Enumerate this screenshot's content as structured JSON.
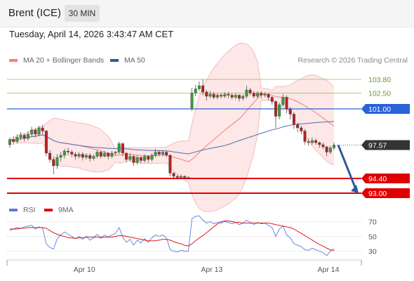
{
  "header": {
    "instrument": "Brent (ICE)",
    "timeframe": "30 MIN"
  },
  "datetime": "Tuesday, April 14, 2026 3:43:47 AM CET",
  "legend": {
    "ma20": {
      "label": "MA 20 + Bollinger Bands",
      "color": "#f08080"
    },
    "ma50": {
      "label": "MA 50",
      "color": "#2e5a9e"
    },
    "rsi": {
      "label": "RSI",
      "color": "#5b7fdc"
    },
    "ma9": {
      "label": "9MA",
      "color": "#e00000"
    }
  },
  "attribution": "Research © 2026 Trading Central",
  "chart_data": {
    "type": "candlestick",
    "price_axis": {
      "ylim": [
        92.6,
        105.0
      ]
    },
    "x_tick_labels": [
      "Apr 10",
      "Apr 13",
      "Apr 14"
    ],
    "levels": [
      {
        "value": 103.8,
        "label": "103.80",
        "role": "resistance",
        "color": "#8fbf4a"
      },
      {
        "value": 102.5,
        "label": "102.50",
        "role": "resistance",
        "color": "#8fbf4a"
      },
      {
        "value": 101.0,
        "label": "101.00",
        "role": "pivot",
        "color": "#2962d9"
      },
      {
        "value": 97.57,
        "label": "97.57",
        "role": "last price",
        "color": "#333333"
      },
      {
        "value": 94.4,
        "label": "94.40",
        "role": "support",
        "color": "#e00000"
      },
      {
        "value": 93.0,
        "label": "93.00",
        "role": "support",
        "color": "#e00000"
      }
    ],
    "forecast_arrow": {
      "from": 97.57,
      "to": 93.0,
      "color": "#2e5a9e"
    },
    "candles": [
      [
        0,
        97.6,
        98.1,
        98.3,
        97.3
      ],
      [
        1,
        98.1,
        97.9,
        98.4,
        97.6
      ],
      [
        2,
        97.9,
        98.3,
        98.6,
        97.7
      ],
      [
        3,
        98.3,
        98.5,
        98.8,
        98.0
      ],
      [
        4,
        98.5,
        98.2,
        98.7,
        97.9
      ],
      [
        5,
        98.2,
        98.6,
        98.9,
        98.0
      ],
      [
        6,
        98.6,
        99.0,
        99.3,
        98.4
      ],
      [
        7,
        99.0,
        98.6,
        99.2,
        98.3
      ],
      [
        8,
        98.6,
        99.2,
        99.4,
        98.4
      ],
      [
        9,
        99.2,
        98.9,
        99.5,
        98.6
      ],
      [
        10,
        98.9,
        96.8,
        99.0,
        96.5
      ],
      [
        11,
        96.8,
        96.2,
        97.1,
        95.9
      ],
      [
        12,
        96.2,
        95.6,
        96.5,
        94.8
      ],
      [
        13,
        95.6,
        96.4,
        96.7,
        95.3
      ],
      [
        14,
        96.4,
        96.6,
        96.9,
        96.0
      ],
      [
        15,
        96.6,
        97.0,
        97.2,
        96.3
      ],
      [
        16,
        97.0,
        96.9,
        97.3,
        96.6
      ],
      [
        17,
        96.9,
        96.7,
        97.1,
        96.4
      ],
      [
        18,
        96.7,
        96.5,
        96.9,
        96.2
      ],
      [
        19,
        96.5,
        96.7,
        96.9,
        96.3
      ],
      [
        20,
        96.7,
        96.4,
        96.9,
        96.1
      ],
      [
        21,
        96.4,
        96.6,
        96.8,
        96.2
      ],
      [
        22,
        96.6,
        96.3,
        96.8,
        96.0
      ],
      [
        23,
        96.3,
        96.5,
        96.7,
        96.1
      ],
      [
        24,
        96.5,
        96.9,
        97.1,
        96.3
      ],
      [
        25,
        96.9,
        96.5,
        97.0,
        96.3
      ],
      [
        26,
        96.5,
        96.8,
        97.0,
        96.4
      ],
      [
        27,
        96.8,
        96.5,
        96.9,
        96.2
      ],
      [
        28,
        96.5,
        96.8,
        97.0,
        96.3
      ],
      [
        29,
        96.8,
        96.9,
        97.0,
        96.6
      ],
      [
        30,
        96.9,
        97.7,
        97.9,
        96.7
      ],
      [
        31,
        97.7,
        96.8,
        97.8,
        96.5
      ],
      [
        32,
        96.8,
        96.2,
        96.9,
        95.9
      ],
      [
        33,
        96.2,
        96.5,
        96.8,
        96.0
      ],
      [
        34,
        96.5,
        95.9,
        96.6,
        95.6
      ],
      [
        35,
        95.9,
        96.4,
        96.6,
        95.7
      ],
      [
        36,
        96.4,
        96.1,
        96.5,
        95.8
      ],
      [
        37,
        96.1,
        96.5,
        96.7,
        95.9
      ],
      [
        38,
        96.5,
        96.2,
        96.6,
        95.9
      ],
      [
        39,
        96.2,
        96.6,
        96.8,
        96.0
      ],
      [
        40,
        96.6,
        96.9,
        97.2,
        96.4
      ],
      [
        41,
        96.9,
        96.7,
        97.1,
        96.5
      ],
      [
        42,
        96.7,
        96.9,
        97.0,
        96.5
      ],
      [
        43,
        96.9,
        96.6,
        97.0,
        96.4
      ],
      [
        44,
        96.6,
        94.9,
        96.7,
        94.6
      ],
      [
        45,
        94.9,
        94.6,
        95.0,
        94.3
      ],
      [
        46,
        94.6,
        94.5,
        94.8,
        94.3
      ],
      [
        47,
        94.5,
        94.6,
        94.8,
        94.4
      ],
      [
        48,
        94.6,
        94.5,
        94.7,
        94.4
      ],
      [
        49,
        94.5,
        94.5,
        94.6,
        94.4
      ],
      [
        50,
        101.0,
        102.5,
        103.0,
        100.8
      ],
      [
        51,
        102.5,
        102.9,
        103.3,
        102.2
      ],
      [
        52,
        102.9,
        103.2,
        103.6,
        102.7
      ],
      [
        53,
        103.2,
        102.6,
        103.8,
        102.3
      ],
      [
        54,
        102.6,
        102.2,
        102.8,
        101.8
      ],
      [
        55,
        102.2,
        102.4,
        102.7,
        102.0
      ],
      [
        56,
        102.4,
        102.1,
        102.6,
        101.9
      ],
      [
        57,
        102.1,
        102.3,
        102.5,
        101.9
      ],
      [
        58,
        102.3,
        102.2,
        102.5,
        102.0
      ],
      [
        59,
        102.2,
        102.4,
        102.6,
        102.0
      ],
      [
        60,
        102.4,
        102.3,
        102.6,
        102.0
      ],
      [
        61,
        102.3,
        102.1,
        102.5,
        101.9
      ],
      [
        62,
        102.1,
        102.3,
        102.5,
        101.9
      ],
      [
        63,
        102.3,
        102.0,
        102.4,
        101.7
      ],
      [
        64,
        102.0,
        102.2,
        102.4,
        101.8
      ],
      [
        65,
        102.2,
        102.8,
        103.2,
        102.0
      ],
      [
        66,
        102.8,
        102.5,
        103.0,
        102.3
      ],
      [
        67,
        102.5,
        102.2,
        102.7,
        102.0
      ],
      [
        68,
        102.2,
        102.5,
        102.7,
        102.0
      ],
      [
        69,
        102.5,
        102.3,
        102.7,
        102.0
      ],
      [
        70,
        102.3,
        102.4,
        102.6,
        102.1
      ],
      [
        71,
        102.4,
        102.1,
        102.5,
        101.8
      ],
      [
        72,
        102.1,
        101.7,
        102.2,
        101.4
      ],
      [
        73,
        101.7,
        100.3,
        101.8,
        99.2
      ],
      [
        74,
        100.3,
        101.4,
        101.6,
        100.0
      ],
      [
        75,
        101.4,
        102.1,
        102.4,
        101.2
      ],
      [
        76,
        102.1,
        101.0,
        102.3,
        100.6
      ],
      [
        77,
        101.0,
        100.5,
        101.2,
        100.0
      ],
      [
        78,
        100.5,
        99.5,
        100.7,
        99.1
      ],
      [
        79,
        99.5,
        99.2,
        99.7,
        98.8
      ],
      [
        80,
        99.2,
        98.9,
        99.4,
        98.6
      ],
      [
        81,
        98.9,
        97.9,
        99.1,
        97.6
      ],
      [
        82,
        97.9,
        97.8,
        98.2,
        97.5
      ],
      [
        83,
        97.8,
        98.0,
        98.3,
        97.6
      ],
      [
        84,
        98.0,
        97.8,
        98.2,
        97.6
      ],
      [
        85,
        97.8,
        97.6,
        97.9,
        97.3
      ],
      [
        86,
        97.6,
        97.4,
        97.8,
        97.2
      ],
      [
        87,
        97.4,
        96.9,
        97.5,
        96.5
      ],
      [
        88,
        96.9,
        97.3,
        97.5,
        96.7
      ],
      [
        89,
        97.3,
        97.57,
        97.8,
        97.1
      ]
    ],
    "rsi_panel": {
      "ylim": [
        20,
        80
      ],
      "y_ticks": [
        70,
        50,
        30
      ],
      "rsi_values": [
        58,
        60,
        62,
        61,
        63,
        64,
        65,
        60,
        63,
        61,
        40,
        35,
        33,
        47,
        52,
        56,
        53,
        50,
        47,
        50,
        46,
        50,
        45,
        48,
        53,
        47,
        52,
        49,
        52,
        54,
        62,
        49,
        42,
        46,
        38,
        45,
        41,
        47,
        42,
        48,
        52,
        50,
        52,
        48,
        32,
        30,
        29,
        31,
        30,
        30,
        74,
        77,
        78,
        72,
        68,
        70,
        67,
        69,
        68,
        70,
        69,
        67,
        69,
        66,
        68,
        72,
        69,
        66,
        69,
        67,
        68,
        65,
        62,
        50,
        60,
        64,
        52,
        48,
        40,
        38,
        36,
        32,
        31,
        34,
        32,
        30,
        28,
        24,
        30,
        33
      ],
      "ma9_values": [
        60,
        60,
        60,
        61,
        61,
        62,
        62,
        62,
        62,
        62,
        61,
        58,
        55,
        53,
        51,
        50,
        48,
        48,
        47,
        48,
        48,
        49,
        49,
        49,
        49,
        49,
        49,
        49,
        49,
        50,
        51,
        51,
        50,
        49,
        48,
        47,
        46,
        45,
        44,
        44,
        44,
        45,
        46,
        46,
        45,
        43,
        41,
        40,
        38,
        37,
        40,
        44,
        48,
        51,
        55,
        59,
        63,
        67,
        70,
        71,
        71,
        70,
        69,
        69,
        68,
        68,
        68,
        68,
        68,
        68,
        68,
        68,
        67,
        66,
        65,
        64,
        63,
        62,
        60,
        57,
        54,
        51,
        48,
        45,
        42,
        39,
        37,
        34,
        32,
        31
      ]
    }
  }
}
